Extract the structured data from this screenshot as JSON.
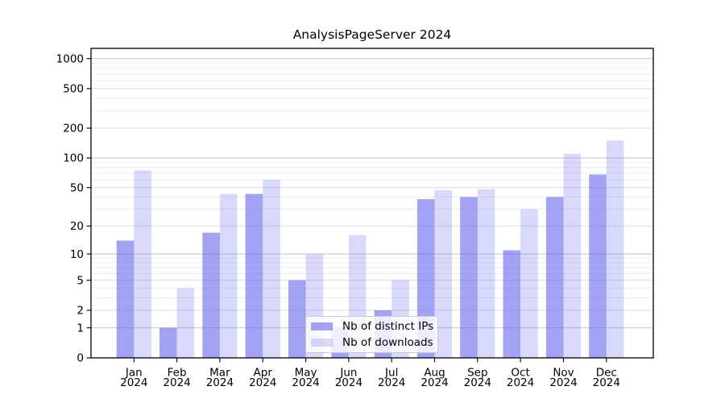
{
  "chart_data": {
    "type": "bar",
    "title": "AnalysisPageServer 2024",
    "categories": [
      "Jan 2024",
      "Feb 2024",
      "Mar 2024",
      "Apr 2024",
      "May 2024",
      "Jun 2024",
      "Jul 2024",
      "Aug 2024",
      "Sep 2024",
      "Oct 2024",
      "Nov 2024",
      "Dec 2024"
    ],
    "month_labels": [
      "Jan",
      "Feb",
      "Mar",
      "Apr",
      "May",
      "Jun",
      "Jul",
      "Aug",
      "Sep",
      "Oct",
      "Nov",
      "Dec"
    ],
    "year_label": "2024",
    "series": [
      {
        "name": "Nb of distinct IPs",
        "color": "rgba(102,102,238,0.6)",
        "values": [
          14,
          1,
          17,
          43,
          5,
          1,
          2,
          38,
          40,
          11,
          40,
          68
        ]
      },
      {
        "name": "Nb of downloads",
        "color": "rgba(102,102,238,0.25)",
        "values": [
          75,
          4,
          43,
          60,
          10,
          16,
          5,
          47,
          48,
          30,
          110,
          150
        ]
      }
    ],
    "yticks": [
      0,
      1,
      2,
      5,
      10,
      20,
      50,
      100,
      200,
      500,
      1000
    ],
    "ylim": [
      0,
      1000
    ],
    "yscale": "log(1+x)",
    "grid": true,
    "legend_position": "lower center"
  },
  "colors": {
    "background": "#ffffff",
    "axis": "#000000",
    "text": "#000000",
    "grid_major": "#c3c3c3",
    "grid_mid": "#dcdcdc",
    "grid_minor": "#ededed",
    "legend_border": "#cbcbcb",
    "legend_bg": "rgba(255,255,255,0.8)"
  }
}
